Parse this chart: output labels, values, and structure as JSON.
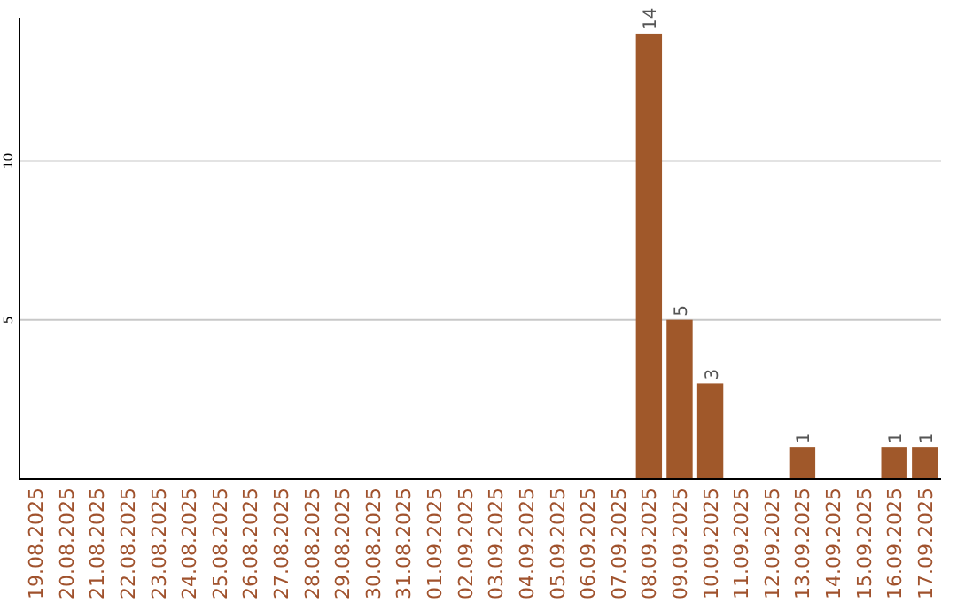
{
  "chart_data": {
    "type": "bar",
    "categories": [
      "19.08.2025",
      "20.08.2025",
      "21.08.2025",
      "22.08.2025",
      "23.08.2025",
      "24.08.2025",
      "25.08.2025",
      "26.08.2025",
      "27.08.2025",
      "28.08.2025",
      "29.08.2025",
      "30.08.2025",
      "31.08.2025",
      "01.09.2025",
      "02.09.2025",
      "03.09.2025",
      "04.09.2025",
      "05.09.2025",
      "06.09.2025",
      "07.09.2025",
      "08.09.2025",
      "09.09.2025",
      "10.09.2025",
      "11.09.2025",
      "12.09.2025",
      "13.09.2025",
      "14.09.2025",
      "15.09.2025",
      "16.09.2025",
      "17.09.2025"
    ],
    "values": [
      0,
      0,
      0,
      0,
      0,
      0,
      0,
      0,
      0,
      0,
      0,
      0,
      0,
      0,
      0,
      0,
      0,
      0,
      0,
      0,
      14,
      5,
      3,
      0,
      0,
      1,
      0,
      0,
      1,
      1
    ],
    "value_labels": [
      null,
      null,
      null,
      null,
      null,
      null,
      null,
      null,
      null,
      null,
      null,
      null,
      null,
      null,
      null,
      null,
      null,
      null,
      null,
      null,
      "14",
      "5",
      "3",
      null,
      null,
      "1",
      null,
      null,
      "1",
      "1"
    ],
    "color": "#a0582a",
    "ylim": [
      0,
      14.5
    ],
    "yticks": [
      5,
      10
    ],
    "grid": "y"
  }
}
